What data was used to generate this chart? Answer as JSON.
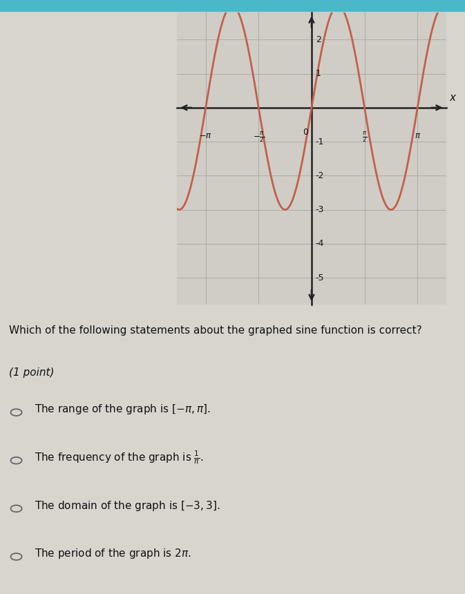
{
  "curve_color": "#c0604a",
  "curve_linewidth": 2.0,
  "xlim": [
    -4.0,
    4.0
  ],
  "ylim": [
    -5.8,
    2.8
  ],
  "amplitude": 3,
  "frequency_mult": 2,
  "question": "Which of the following statements about the graphed sine function is correct?",
  "point_label": "(1 point)",
  "outer_bg": "#d8d5ce",
  "graph_box_bg": "#d0cdc6",
  "header_bg": "#4ab8c8",
  "graph_border_color": "#aaaaaa",
  "text_color": "#111111",
  "option_circle_color": "#666666",
  "option_texts_latex": [
    "The range of the graph is $[-\\pi, \\pi]$.",
    "The frequency of the graph is $\\frac{1}{\\pi}$.",
    "The domain of the graph is $[-3, 3]$.",
    "The period of the graph is $2\\pi$."
  ],
  "x_tick_positions": [
    -3.14159265,
    -1.5707963,
    0,
    1.5707963,
    3.14159265
  ],
  "y_tick_positions": [
    -5,
    -4,
    -3,
    -2,
    -1,
    1,
    2
  ],
  "grid_color": "#aaaaaa",
  "grid_linewidth": 0.7,
  "axis_color": "#222222",
  "axis_linewidth": 1.8
}
